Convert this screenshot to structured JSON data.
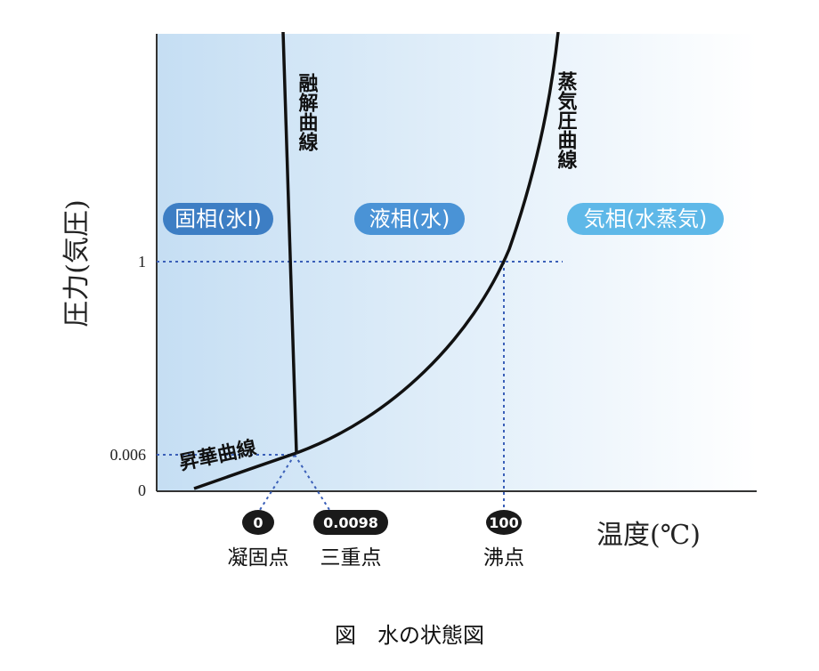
{
  "axes": {
    "y_title": "圧力(気圧)",
    "x_title": "温度(℃)",
    "y_ticks": [
      "1",
      "0.006",
      "0"
    ]
  },
  "regions": [
    {
      "label": "固相(氷I)",
      "color": "#3d7ec4"
    },
    {
      "label": "液相(水)",
      "color": "#4a93d6"
    },
    {
      "label": "気相(水蒸気)",
      "color": "#5eb8e8"
    }
  ],
  "curves": {
    "melting": "融解曲線",
    "vapor": "蒸気圧曲線",
    "sublimation": "昇華曲線"
  },
  "points": [
    {
      "value": "0",
      "name": "凝固点"
    },
    {
      "value": "0.0098",
      "name": "三重点"
    },
    {
      "value": "100",
      "name": "沸点"
    }
  ],
  "caption": "図　水の状態図",
  "colors": {
    "background_left": "#c9e1f4",
    "background_right": "#ffffff",
    "guide": "#3a5fb8",
    "curve": "#111111",
    "badge": "#1a1a1a"
  }
}
